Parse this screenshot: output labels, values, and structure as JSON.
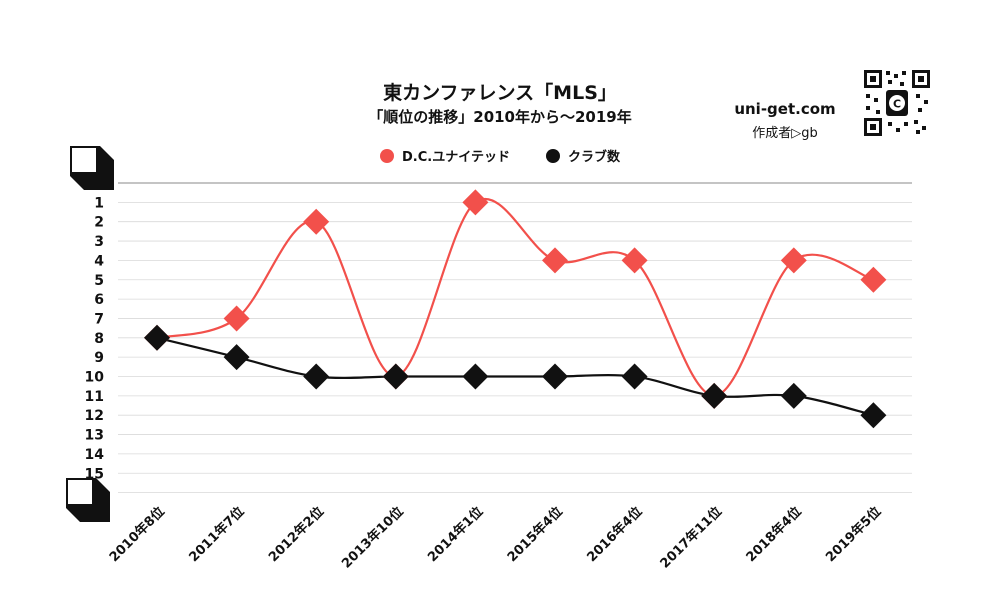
{
  "title": "東カンファレンス「MLS」",
  "subtitle": "「順位の推移」2010年から～2019年",
  "brand": "uni-get.com",
  "author": "作成者▷gb",
  "qr_icon": "qr-code-icon",
  "colors": {
    "team": "#f2504b",
    "clubs": "#111111",
    "grid": "#d9d9d9"
  },
  "chart_data": {
    "type": "line",
    "title": "東カンファレンス「MLS」",
    "subtitle": "「順位の推移」2010年から～2019年",
    "categories": [
      "2010年8位",
      "2011年7位",
      "2012年2位",
      "2013年10位",
      "2014年1位",
      "2015年4位",
      "2016年4位",
      "2017年11位",
      "2018年4位",
      "2019年5位"
    ],
    "series": [
      {
        "name": "D.C.ユナイテッド",
        "values": [
          8,
          7,
          2,
          10,
          1,
          4,
          4,
          11,
          4,
          5
        ],
        "color": "#f2504b",
        "smooth": true
      },
      {
        "name": "クラブ数",
        "values": [
          8,
          9,
          10,
          10,
          10,
          10,
          10,
          11,
          11,
          12
        ],
        "color": "#111111",
        "smooth": true
      }
    ],
    "y_ticks": [
      "1",
      "2",
      "3",
      "4",
      "5",
      "6",
      "7",
      "8",
      "9",
      "10",
      "11",
      "12",
      "13",
      "14",
      "15"
    ],
    "ylim": [
      16,
      0
    ],
    "y_reversed": true,
    "grid": true,
    "legend_position": "top-center",
    "marker": "diamond"
  }
}
